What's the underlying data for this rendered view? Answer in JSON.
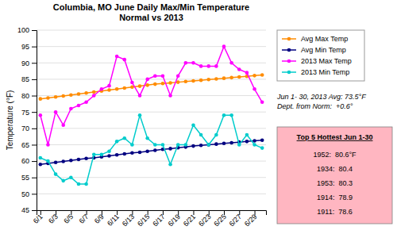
{
  "chart_data": {
    "type": "line",
    "title": "Columbia, MO June Daily Max/Min Temperature\nNormal vs 2013",
    "ylabel": "Temperature (°F)",
    "x": [
      1,
      2,
      3,
      4,
      5,
      6,
      7,
      8,
      9,
      10,
      11,
      12,
      13,
      14,
      15,
      16,
      17,
      18,
      19,
      20,
      21,
      22,
      23,
      24,
      25,
      26,
      27,
      28,
      29,
      30
    ],
    "xlim": [
      0.5,
      30.5
    ],
    "xticks": [
      {
        "value": 1,
        "label": "6/1"
      },
      {
        "value": 3,
        "label": "6/3"
      },
      {
        "value": 5,
        "label": "6/5"
      },
      {
        "value": 7,
        "label": "6/7"
      },
      {
        "value": 9,
        "label": "6/9"
      },
      {
        "value": 11,
        "label": "6/11"
      },
      {
        "value": 13,
        "label": "6/13"
      },
      {
        "value": 15,
        "label": "6/15"
      },
      {
        "value": 17,
        "label": "6/17"
      },
      {
        "value": 19,
        "label": "6/19"
      },
      {
        "value": 21,
        "label": "6/21"
      },
      {
        "value": 23,
        "label": "6/23"
      },
      {
        "value": 25,
        "label": "6/25"
      },
      {
        "value": 27,
        "label": "6/27"
      },
      {
        "value": 29,
        "label": "6/29"
      }
    ],
    "ylim": [
      45,
      100
    ],
    "yticks": [
      45,
      50,
      55,
      60,
      65,
      70,
      75,
      80,
      85,
      90,
      95,
      100
    ],
    "grid": "y",
    "legend": "right",
    "series": [
      {
        "name": "Avg Max Temp",
        "color": "#FF8C00",
        "marker": "circle",
        "values": [
          79.0,
          79.3,
          79.6,
          79.9,
          80.2,
          80.5,
          80.8,
          81.1,
          81.4,
          81.7,
          82.0,
          82.3,
          82.6,
          82.9,
          83.2,
          83.5,
          83.7,
          83.9,
          84.1,
          84.3,
          84.5,
          84.7,
          84.9,
          85.1,
          85.3,
          85.5,
          85.7,
          85.9,
          86.1,
          86.3
        ]
      },
      {
        "name": "Avg Min Temp",
        "color": "#000080",
        "marker": "circle",
        "values": [
          59.0,
          59.3,
          59.6,
          59.9,
          60.2,
          60.5,
          60.8,
          61.0,
          61.3,
          61.6,
          61.9,
          62.2,
          62.5,
          62.7,
          63.0,
          63.3,
          63.6,
          63.8,
          64.1,
          64.3,
          64.6,
          64.8,
          65.0,
          65.2,
          65.4,
          65.6,
          65.8,
          66.0,
          66.2,
          66.4
        ]
      },
      {
        "name": "2013 Max Temp",
        "color": "#FF00FF",
        "marker": "circle",
        "values": [
          74,
          65,
          75,
          71,
          76,
          77,
          78,
          80,
          82,
          83,
          92,
          91,
          84,
          80,
          85,
          86,
          86,
          80,
          86,
          90,
          90,
          89,
          89,
          89,
          95,
          90,
          88,
          87,
          82,
          78
        ]
      },
      {
        "name": "2013 Min Temp",
        "color": "#00CCCC",
        "marker": "circle",
        "values": [
          61,
          60,
          56,
          54,
          55,
          53,
          53,
          62,
          62,
          63,
          66,
          67,
          65,
          74,
          67,
          65,
          65,
          59,
          65,
          65,
          71,
          68,
          65,
          68,
          74,
          74,
          65,
          68,
          65,
          64
        ]
      }
    ],
    "annotation": [
      "Jun 1- 30, 2013 Avg: 73.5°F",
      "Dept. from Norm:  +0.6°"
    ],
    "box": {
      "title": "Top 5 Hottest Jun 1-30",
      "lines": [
        "1952:  80.6°F",
        "1934:  80.4",
        "1953:  80.3",
        "1914:  78.9",
        "1911:  78.6"
      ],
      "color": "#FFB6C1"
    }
  }
}
